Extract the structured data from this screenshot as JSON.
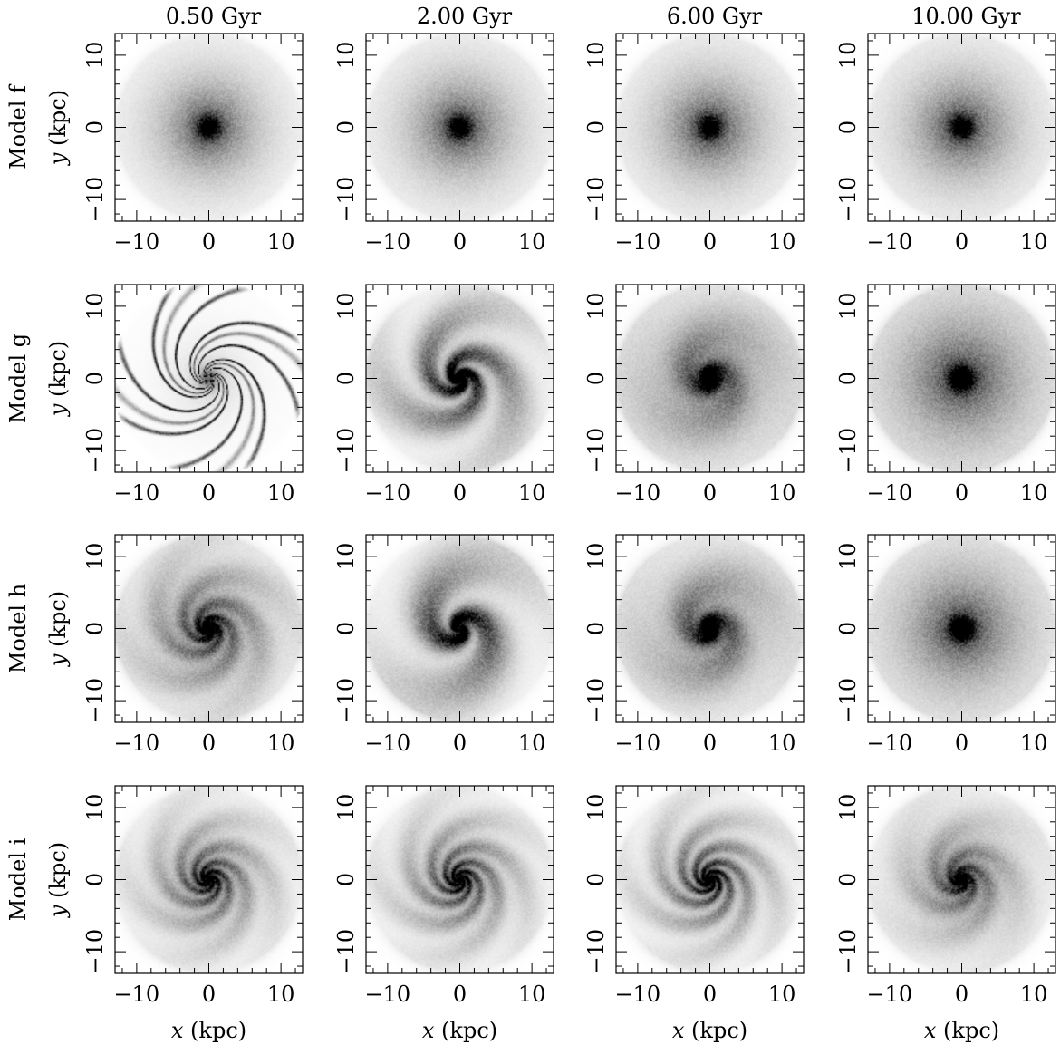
{
  "chart_data": {
    "type": "heatmap",
    "description_units": "surface density maps, x and y in kpc",
    "columns": [
      "0.50 Gyr",
      "2.00 Gyr",
      "6.00 Gyr",
      "10.00 Gyr"
    ],
    "rows": [
      "Model f",
      "Model g",
      "Model h",
      "Model i"
    ],
    "xlabel_prefix": "x",
    "xlabel_suffix": " (kpc)",
    "ylabel_prefix": "y",
    "ylabel_suffix": " (kpc)",
    "xlim": [
      -13,
      13
    ],
    "ylim": [
      -13,
      13
    ],
    "major_ticks": [
      -10,
      0,
      10
    ],
    "minor_ticks": [
      -12,
      -10,
      -8,
      -6,
      -4,
      -2,
      0,
      2,
      4,
      6,
      8,
      10,
      12
    ],
    "tick_labels": [
      "−10",
      "0",
      "10"
    ],
    "panels": [
      [
        {
          "arms": 0,
          "arm_strength": 0.0,
          "core": 0.55,
          "scale_kpc": 5.0,
          "pitch": 0.0,
          "edge": "soft"
        },
        {
          "arms": 0,
          "arm_strength": 0.0,
          "core": 0.55,
          "scale_kpc": 5.2,
          "pitch": 0.0,
          "edge": "soft"
        },
        {
          "arms": 0,
          "arm_strength": 0.0,
          "core": 0.55,
          "scale_kpc": 5.3,
          "pitch": 0.0,
          "edge": "soft"
        },
        {
          "arms": 0,
          "arm_strength": 0.0,
          "core": 0.55,
          "scale_kpc": 5.4,
          "pitch": 0.0,
          "edge": "soft"
        }
      ],
      [
        {
          "arms": 8,
          "arm_strength": 1.0,
          "core": 0.35,
          "scale_kpc": 9.0,
          "pitch": 0.55,
          "edge": "filament"
        },
        {
          "arms": 3,
          "arm_strength": 0.55,
          "core": 0.75,
          "scale_kpc": 6.5,
          "pitch": 0.45,
          "edge": "soft"
        },
        {
          "arms": 2,
          "arm_strength": 0.18,
          "core": 0.85,
          "scale_kpc": 6.8,
          "pitch": 0.4,
          "edge": "soft"
        },
        {
          "arms": 0,
          "arm_strength": 0.0,
          "core": 0.9,
          "scale_kpc": 7.0,
          "pitch": 0.0,
          "edge": "soft"
        }
      ],
      [
        {
          "arms": 4,
          "arm_strength": 0.25,
          "core": 0.6,
          "scale_kpc": 6.5,
          "pitch": 0.4,
          "edge": "soft"
        },
        {
          "arms": 2,
          "arm_strength": 0.6,
          "core": 0.65,
          "scale_kpc": 6.5,
          "pitch": 0.45,
          "edge": "soft"
        },
        {
          "arms": 2,
          "arm_strength": 0.25,
          "core": 0.85,
          "scale_kpc": 6.5,
          "pitch": 0.4,
          "edge": "soft"
        },
        {
          "arms": 0,
          "arm_strength": 0.0,
          "core": 0.9,
          "scale_kpc": 6.5,
          "pitch": 0.0,
          "edge": "soft"
        }
      ],
      [
        {
          "arms": 5,
          "arm_strength": 0.3,
          "core": 0.45,
          "scale_kpc": 5.5,
          "pitch": 0.42,
          "edge": "soft"
        },
        {
          "arms": 5,
          "arm_strength": 0.35,
          "core": 0.45,
          "scale_kpc": 5.5,
          "pitch": 0.42,
          "edge": "soft"
        },
        {
          "arms": 5,
          "arm_strength": 0.4,
          "core": 0.5,
          "scale_kpc": 5.5,
          "pitch": 0.42,
          "edge": "soft"
        },
        {
          "arms": 4,
          "arm_strength": 0.2,
          "core": 0.45,
          "scale_kpc": 5.5,
          "pitch": 0.42,
          "edge": "soft"
        }
      ]
    ]
  }
}
